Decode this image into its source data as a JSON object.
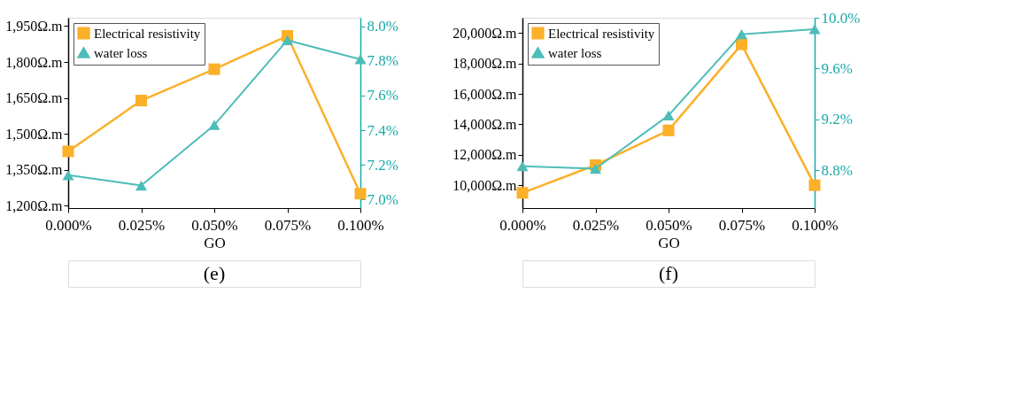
{
  "chart_data": [
    {
      "type": "line",
      "xlabel": "GO",
      "categories": [
        "0.000%",
        "0.025%",
        "0.050%",
        "0.075%",
        "0.100%"
      ],
      "legend": "top left",
      "grid": false,
      "ylim": [
        1190,
        1985
      ],
      "yticks": [
        {
          "value": 1200,
          "label": "1,200Ω.m"
        },
        {
          "value": 1350,
          "label": "1,350Ω.m"
        },
        {
          "value": 1500,
          "label": "1,500Ω.m"
        },
        {
          "value": 1650,
          "label": "1,650Ω.m"
        },
        {
          "value": 1800,
          "label": "1,800Ω.m"
        },
        {
          "value": 1950,
          "label": "1,950Ω.m"
        }
      ],
      "y2lim": [
        6.95,
        8.05
      ],
      "y2ticks": [
        {
          "value": 7.0,
          "label": "7.0%"
        },
        {
          "value": 7.2,
          "label": "7.2%"
        },
        {
          "value": 7.4,
          "label": "7.4%"
        },
        {
          "value": 7.6,
          "label": "7.6%"
        },
        {
          "value": 7.8,
          "label": "7.8%"
        },
        {
          "value": 8.0,
          "label": "8.0%"
        }
      ],
      "series": [
        {
          "name": "Electrical resistivity",
          "color": "#fbb02a",
          "marker": "square",
          "values": [
            1427,
            1639,
            1770,
            1909,
            1250
          ]
        },
        {
          "name": "water loss",
          "color": "#4dbdb8",
          "marker": "triangle",
          "axis": "y2",
          "values": [
            7.14,
            7.08,
            7.43,
            7.92,
            7.81
          ]
        }
      ],
      "annotations": [
        "(e)"
      ]
    },
    {
      "type": "line",
      "xlabel": "GO",
      "categories": [
        "0.000%",
        "0.025%",
        "0.050%",
        "0.075%",
        "0.100%"
      ],
      "legend": "top left",
      "grid": false,
      "ylim": [
        8500,
        21000
      ],
      "yticks": [
        {
          "value": 10000,
          "label": "10,000Ω.m"
        },
        {
          "value": 12000,
          "label": "12,000Ω.m"
        },
        {
          "value": 14000,
          "label": "14,000Ω.m"
        },
        {
          "value": 16000,
          "label": "16,000Ω.m"
        },
        {
          "value": 18000,
          "label": "18,000Ω.m"
        },
        {
          "value": 20000,
          "label": "20,000Ω.m"
        }
      ],
      "y2lim": [
        8.5,
        10.0
      ],
      "y2ticks": [
        {
          "value": 8.8,
          "label": "8.8%"
        },
        {
          "value": 9.2,
          "label": "9.2%"
        },
        {
          "value": 9.6,
          "label": "9.6%"
        },
        {
          "value": 10.0,
          "label": "10.0%"
        }
      ],
      "series": [
        {
          "name": "Electrical resistivity",
          "color": "#fbb02a",
          "marker": "square",
          "values": [
            9500,
            11320,
            13600,
            19250,
            10000
          ]
        },
        {
          "name": "water loss",
          "color": "#4dbdb8",
          "marker": "triangle",
          "axis": "y2",
          "values": [
            8.83,
            8.81,
            9.23,
            9.87,
            9.91
          ]
        }
      ],
      "annotations": [
        "(f)"
      ]
    }
  ]
}
